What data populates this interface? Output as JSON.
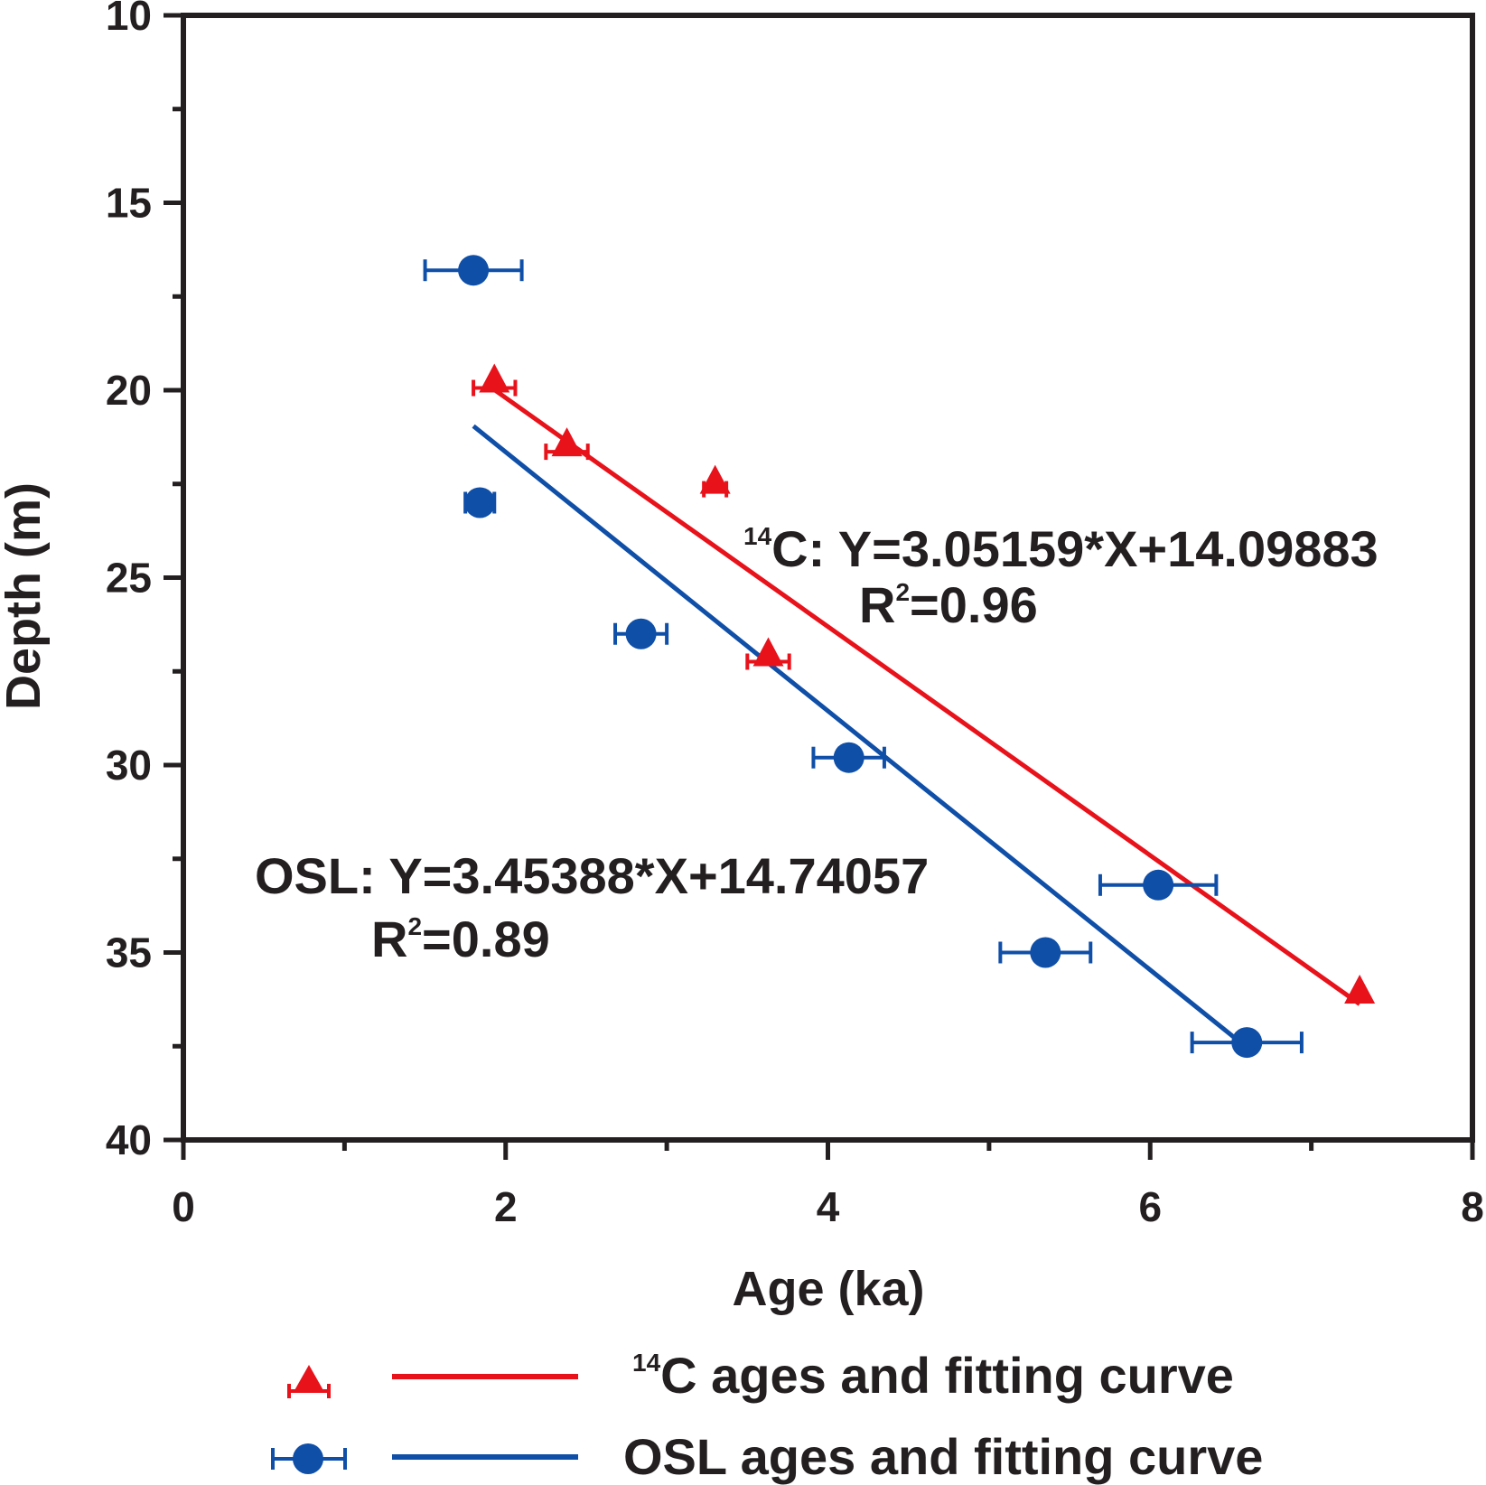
{
  "chart_data": {
    "type": "scatter",
    "xlabel": "Age (ka)",
    "ylabel": "Depth (m)",
    "xlim": [
      0,
      8
    ],
    "ylim": [
      10,
      40
    ],
    "y_inverted": true,
    "x_ticks": [
      "0",
      "2",
      "4",
      "6",
      "8"
    ],
    "y_ticks": [
      "10",
      "15",
      "20",
      "25",
      "30",
      "35",
      "40"
    ],
    "series": [
      {
        "name": "14C ages and fitting curve",
        "color": "#e8121b",
        "marker": "triangle",
        "points": [
          {
            "x": 1.93,
            "y": 19.7,
            "err": 0.13
          },
          {
            "x": 2.38,
            "y": 21.4,
            "err": 0.13
          },
          {
            "x": 3.3,
            "y": 22.4,
            "err": 0.07
          },
          {
            "x": 3.63,
            "y": 27.0,
            "err": 0.13
          },
          {
            "x": 7.3,
            "y": 36.0,
            "err": 0.0
          }
        ],
        "fit": {
          "slope": 3.05159,
          "intercept": 14.09883,
          "x_range": [
            1.93,
            7.3
          ]
        },
        "equation_label": {
          "superscript": "14",
          "text": "C: Y=3.05159*X+14.09883"
        },
        "r2_label": {
          "prefix": "R",
          "superscript": "2",
          "suffix": "=0.96"
        }
      },
      {
        "name": "OSL ages and fitting curve",
        "color": "#0f4fa8",
        "marker": "circle",
        "points": [
          {
            "x": 1.8,
            "y": 16.8,
            "err": 0.3
          },
          {
            "x": 1.84,
            "y": 23.0,
            "err": 0.09
          },
          {
            "x": 2.84,
            "y": 26.5,
            "err": 0.16
          },
          {
            "x": 4.13,
            "y": 29.8,
            "err": 0.22
          },
          {
            "x": 6.05,
            "y": 33.2,
            "err": 0.36
          },
          {
            "x": 5.35,
            "y": 35.0,
            "err": 0.28
          },
          {
            "x": 6.6,
            "y": 37.4,
            "err": 0.34
          }
        ],
        "fit": {
          "slope": 3.45388,
          "intercept": 14.74057,
          "x_range": [
            1.8,
            6.6
          ]
        },
        "equation_label": {
          "superscript": "",
          "text": "OSL: Y=3.45388*X+14.74057"
        },
        "r2_label": {
          "prefix": "R",
          "superscript": "2",
          "suffix": "=0.89"
        }
      }
    ],
    "legend": {
      "placement": "bottom",
      "items": [
        {
          "superscript": "14",
          "text": "C ages and fitting curve"
        },
        {
          "superscript": "",
          "text": "OSL ages and fitting curve"
        }
      ]
    }
  }
}
